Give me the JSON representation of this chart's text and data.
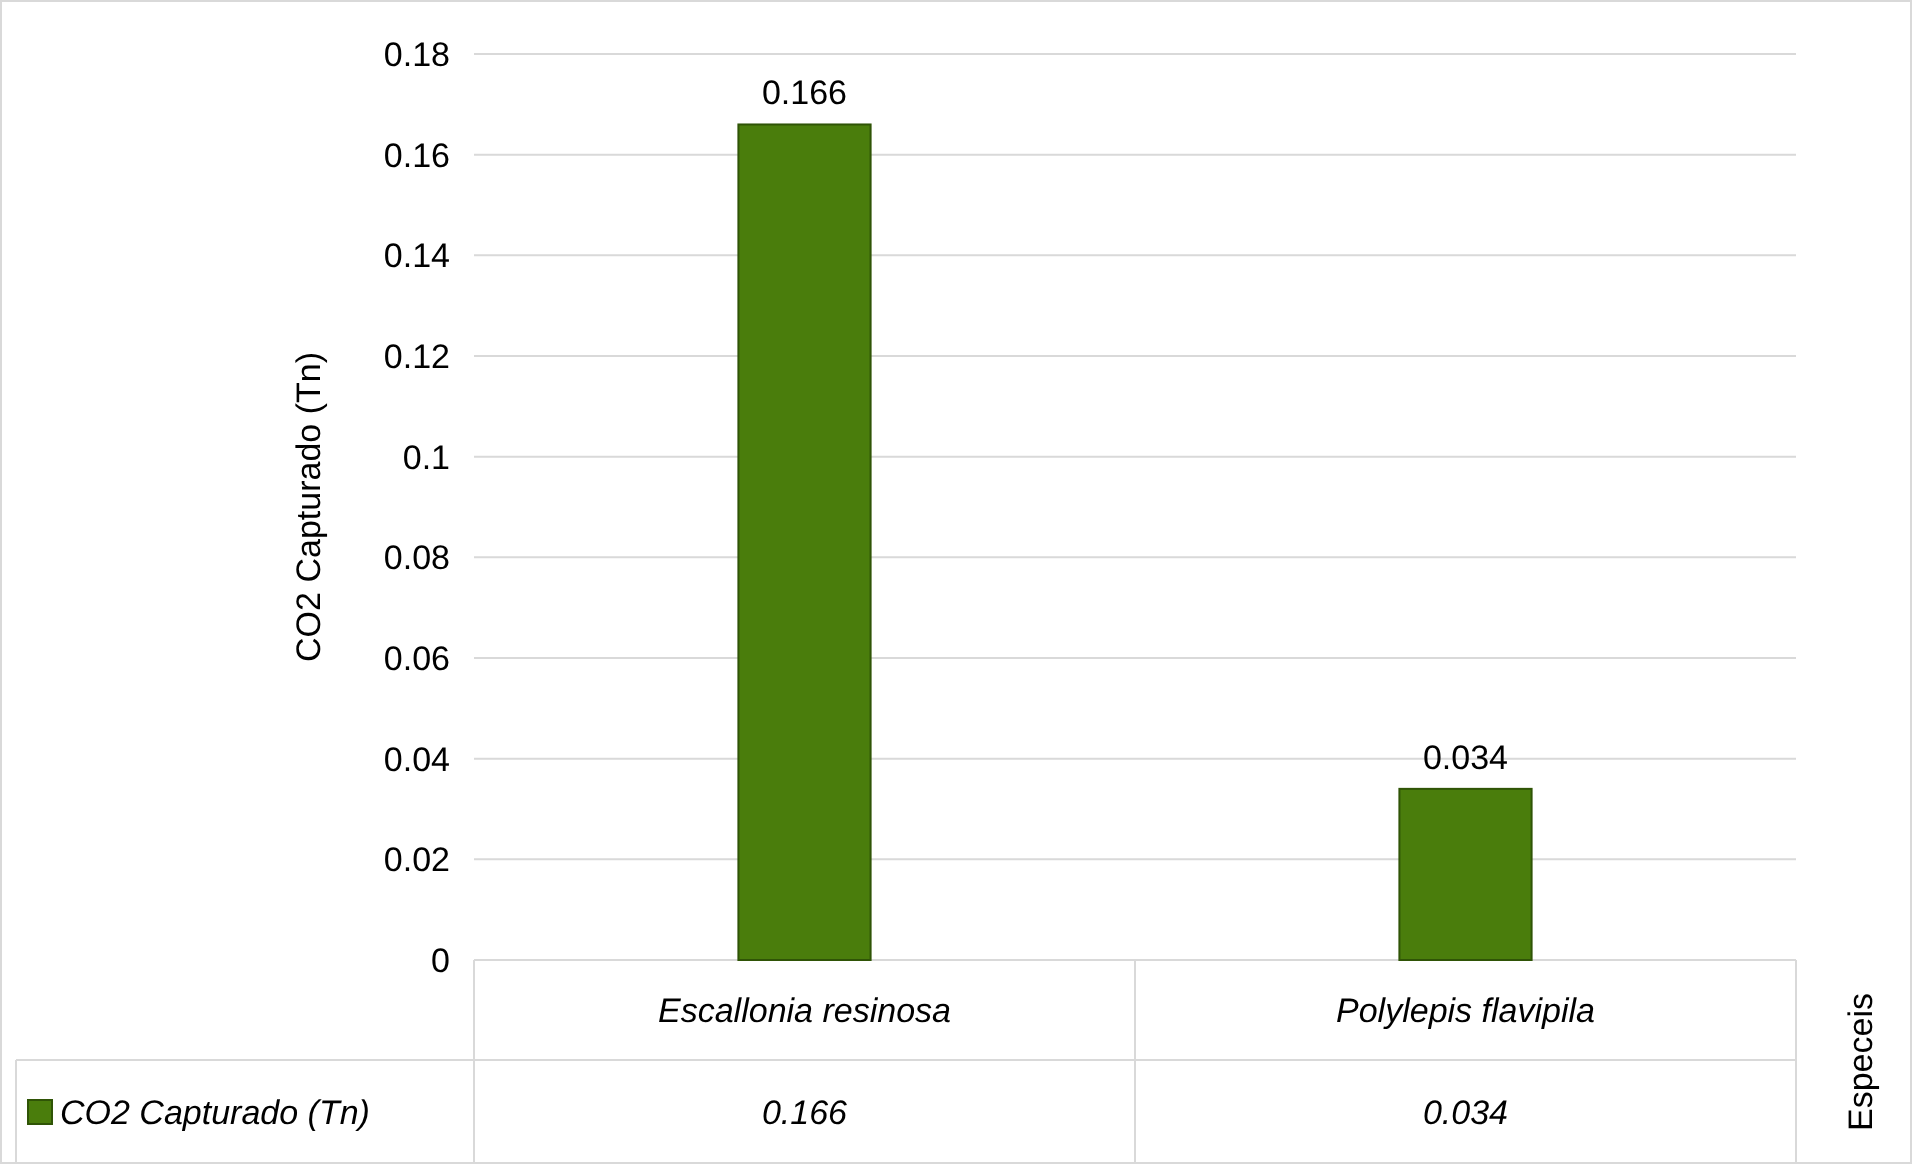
{
  "chart_data": {
    "type": "bar",
    "categories": [
      "Escallonia resinosa",
      "Polylepis flavipila"
    ],
    "series": [
      {
        "name": "CO2 Capturado (Tn)",
        "color": "#4a7d0c",
        "values": [
          0.166,
          0.034
        ],
        "value_labels": [
          "0.166",
          "0.034"
        ]
      }
    ],
    "ylabel": "CO2 Capturado (Tn)",
    "annotations": [
      "Especeis",
      "0.166",
      "0.034"
    ],
    "ylim": [
      0,
      0.18
    ],
    "yticks": [
      0,
      0.02,
      0.04,
      0.06,
      0.08,
      0.1,
      0.12,
      0.14,
      0.16,
      0.18
    ],
    "grid": "y",
    "legend": "bottom"
  }
}
